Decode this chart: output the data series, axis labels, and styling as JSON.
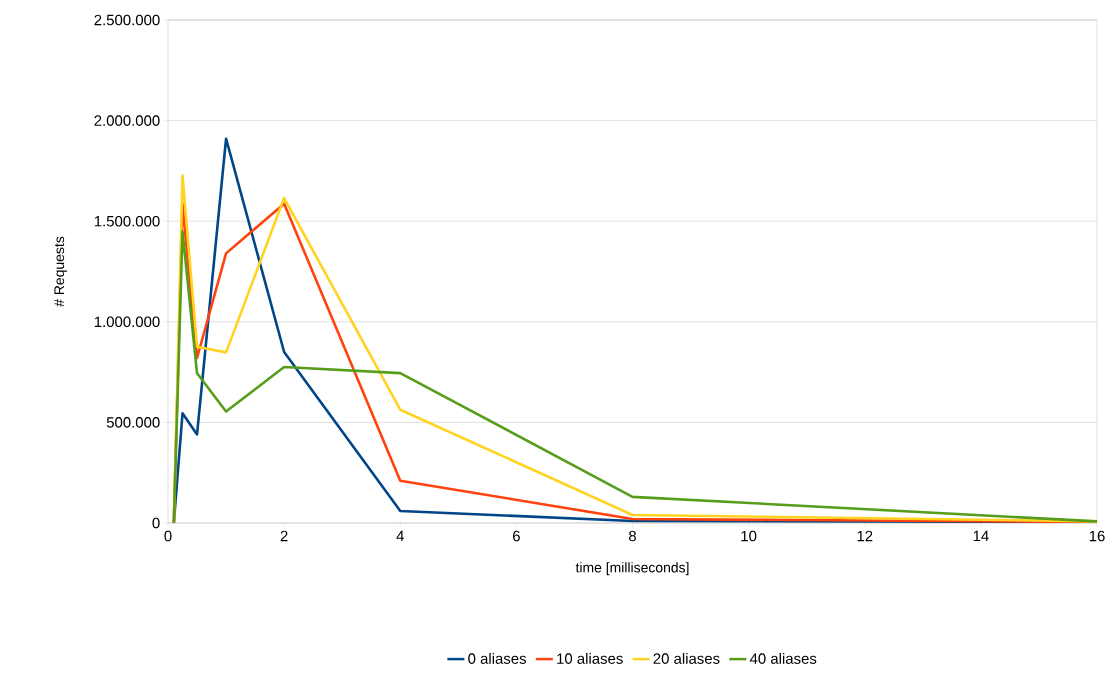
{
  "chart_data": {
    "type": "line",
    "xlabel": "time [milliseconds]",
    "ylabel": "# Requests",
    "xlim": [
      0,
      16
    ],
    "xticks": [
      0,
      2,
      4,
      6,
      8,
      10,
      12,
      14,
      16
    ],
    "ylim": [
      0,
      2500000
    ],
    "yticks": [
      {
        "value": 0,
        "label": "0"
      },
      {
        "value": 500000,
        "label": "500.000"
      },
      {
        "value": 1000000,
        "label": "1.000.000"
      },
      {
        "value": 1500000,
        "label": "1.500.000"
      },
      {
        "value": 2000000,
        "label": "2.000.000"
      },
      {
        "value": 2500000,
        "label": "2.500.000"
      }
    ],
    "grid": "y",
    "legend": "bottom",
    "marker": "none",
    "line_style": "solid",
    "x": [
      0.1,
      0.25,
      0.5,
      1,
      2,
      4,
      8,
      16
    ],
    "series": [
      {
        "name": "0 aliases",
        "color": "#004586",
        "values": [
          0,
          545000,
          440000,
          1910000,
          850000,
          60000,
          10000,
          5000
        ]
      },
      {
        "name": "10 aliases",
        "color": "#ff420e",
        "values": [
          0,
          1587000,
          820000,
          1340000,
          1587000,
          210000,
          20000,
          5000
        ]
      },
      {
        "name": "20 aliases",
        "color": "#ffd320",
        "values": [
          0,
          1727000,
          876000,
          848000,
          1615000,
          563000,
          40000,
          8000
        ]
      },
      {
        "name": "40 aliases",
        "color": "#579d1c",
        "values": [
          0,
          1450000,
          744000,
          554000,
          775000,
          745000,
          130000,
          8000
        ]
      }
    ]
  }
}
